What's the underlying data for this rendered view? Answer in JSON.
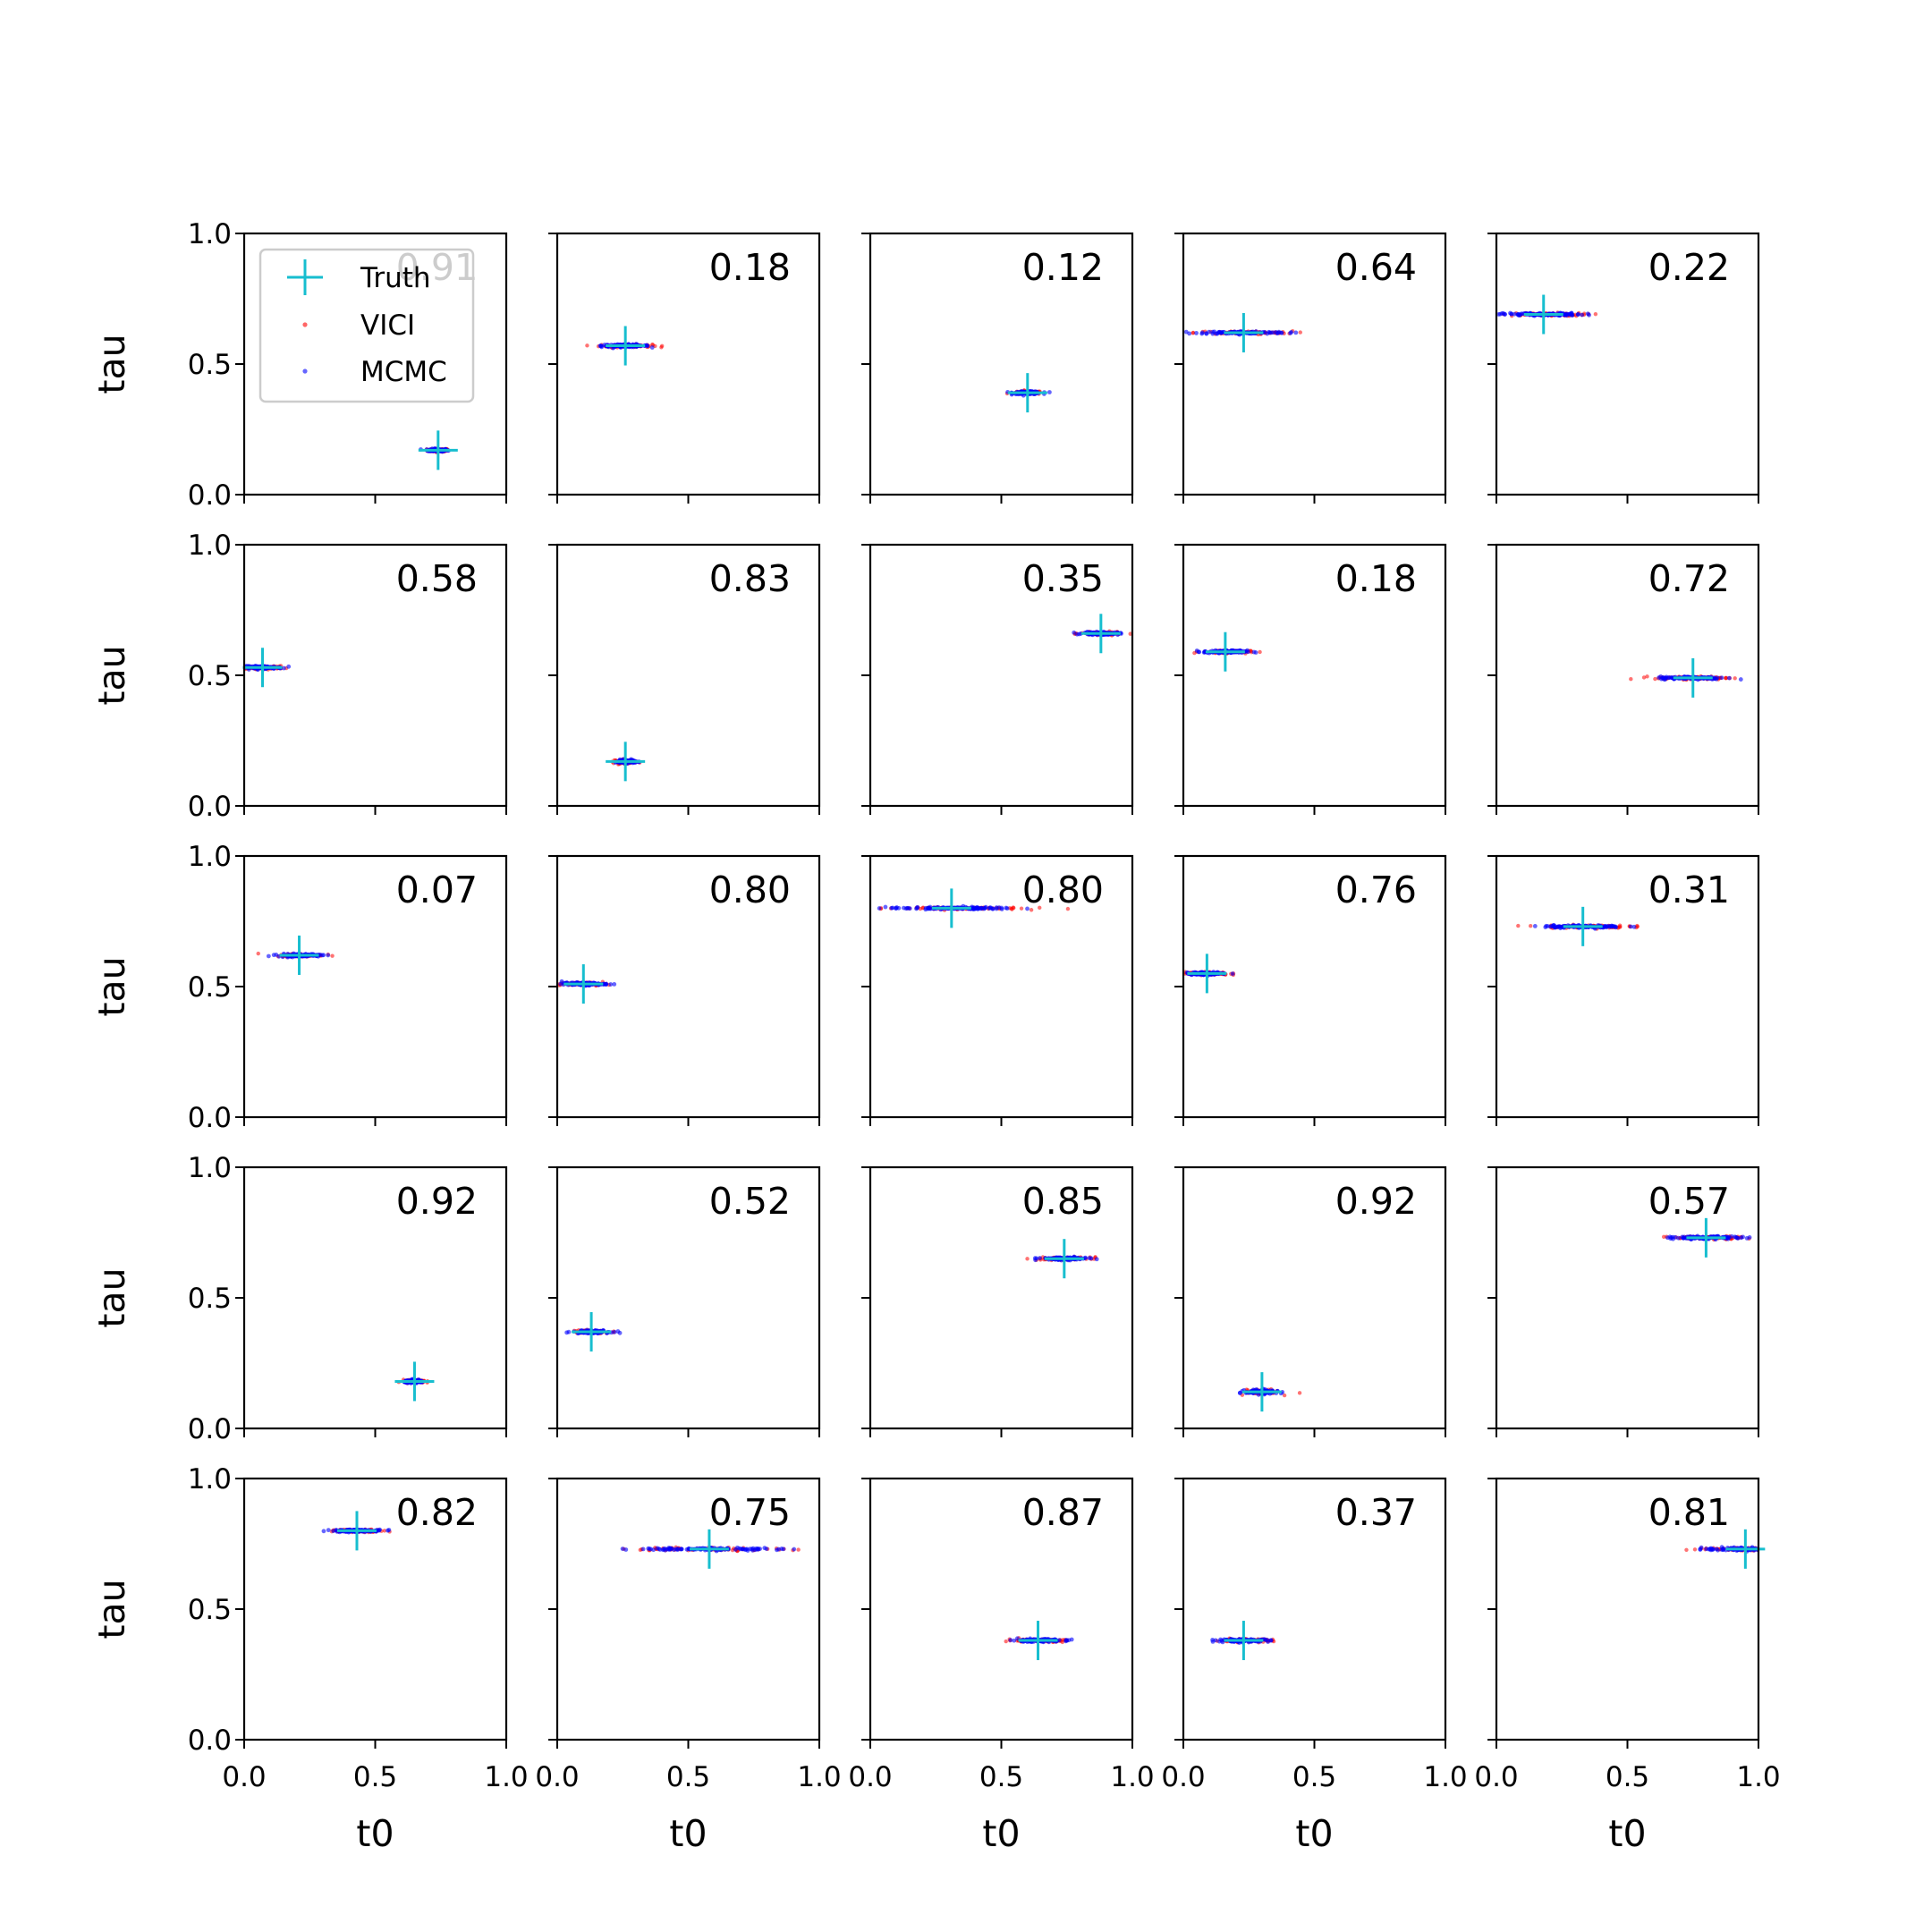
{
  "chart_data": {
    "type": "scatter",
    "grid": "5x5",
    "shared_axes": true,
    "xlabel": "t0",
    "ylabel": "tau",
    "xlim": [
      0.0,
      1.0
    ],
    "ylim": [
      0.0,
      1.0
    ],
    "x_ticks": [
      "0.0",
      "0.5",
      "1.0"
    ],
    "y_ticks": [
      "0.0",
      "0.5",
      "1.0"
    ],
    "legend": {
      "placement": "upper-left of first panel",
      "entries": [
        {
          "name": "Truth",
          "marker": "+",
          "color": "#17becf"
        },
        {
          "name": "VICI",
          "marker": "dot",
          "color": "#ff0000"
        },
        {
          "name": "MCMC",
          "marker": "dot",
          "color": "#0000ff"
        }
      ]
    },
    "panels": [
      {
        "label": "0.91",
        "truth": [
          0.74,
          0.17
        ],
        "spread": [
          0.05,
          0.012
        ]
      },
      {
        "label": "0.18",
        "truth": [
          0.26,
          0.57
        ],
        "spread": [
          0.12,
          0.012
        ]
      },
      {
        "label": "0.12",
        "truth": [
          0.6,
          0.39
        ],
        "spread": [
          0.07,
          0.012
        ]
      },
      {
        "label": "0.64",
        "truth": [
          0.23,
          0.62
        ],
        "spread": [
          0.22,
          0.012
        ]
      },
      {
        "label": "0.22",
        "truth": [
          0.18,
          0.69
        ],
        "spread": [
          0.2,
          0.012
        ]
      },
      {
        "label": "0.58",
        "truth": [
          0.07,
          0.53
        ],
        "spread": [
          0.1,
          0.012
        ]
      },
      {
        "label": "0.83",
        "truth": [
          0.26,
          0.17
        ],
        "spread": [
          0.05,
          0.015
        ]
      },
      {
        "label": "0.35",
        "truth": [
          0.88,
          0.66
        ],
        "spread": [
          0.09,
          0.012
        ]
      },
      {
        "label": "0.18",
        "truth": [
          0.16,
          0.59
        ],
        "spread": [
          0.11,
          0.012
        ]
      },
      {
        "label": "0.72",
        "truth": [
          0.75,
          0.49
        ],
        "spread": [
          0.17,
          0.012
        ]
      },
      {
        "label": "0.07",
        "truth": [
          0.21,
          0.62
        ],
        "spread": [
          0.11,
          0.012
        ]
      },
      {
        "label": "0.80",
        "truth": [
          0.1,
          0.51
        ],
        "spread": [
          0.11,
          0.012
        ]
      },
      {
        "label": "0.80",
        "truth": [
          0.31,
          0.8
        ],
        "spread": [
          0.32,
          0.01
        ]
      },
      {
        "label": "0.76",
        "truth": [
          0.09,
          0.55
        ],
        "spread": [
          0.1,
          0.012
        ]
      },
      {
        "label": "0.31",
        "truth": [
          0.33,
          0.73
        ],
        "spread": [
          0.2,
          0.012
        ]
      },
      {
        "label": "0.92",
        "truth": [
          0.65,
          0.18
        ],
        "spread": [
          0.05,
          0.012
        ]
      },
      {
        "label": "0.52",
        "truth": [
          0.13,
          0.37
        ],
        "spread": [
          0.09,
          0.012
        ]
      },
      {
        "label": "0.85",
        "truth": [
          0.74,
          0.65
        ],
        "spread": [
          0.12,
          0.012
        ]
      },
      {
        "label": "0.92",
        "truth": [
          0.3,
          0.14
        ],
        "spread": [
          0.08,
          0.018
        ]
      },
      {
        "label": "0.57",
        "truth": [
          0.8,
          0.73
        ],
        "spread": [
          0.17,
          0.012
        ]
      },
      {
        "label": "0.82",
        "truth": [
          0.43,
          0.8
        ],
        "spread": [
          0.13,
          0.01
        ]
      },
      {
        "label": "0.75",
        "truth": [
          0.58,
          0.73
        ],
        "spread": [
          0.36,
          0.012
        ]
      },
      {
        "label": "0.87",
        "truth": [
          0.64,
          0.38
        ],
        "spread": [
          0.14,
          0.012
        ]
      },
      {
        "label": "0.37",
        "truth": [
          0.23,
          0.38
        ],
        "spread": [
          0.13,
          0.012
        ]
      },
      {
        "label": "0.81",
        "truth": [
          0.95,
          0.73
        ],
        "spread": [
          0.21,
          0.012
        ]
      }
    ]
  }
}
